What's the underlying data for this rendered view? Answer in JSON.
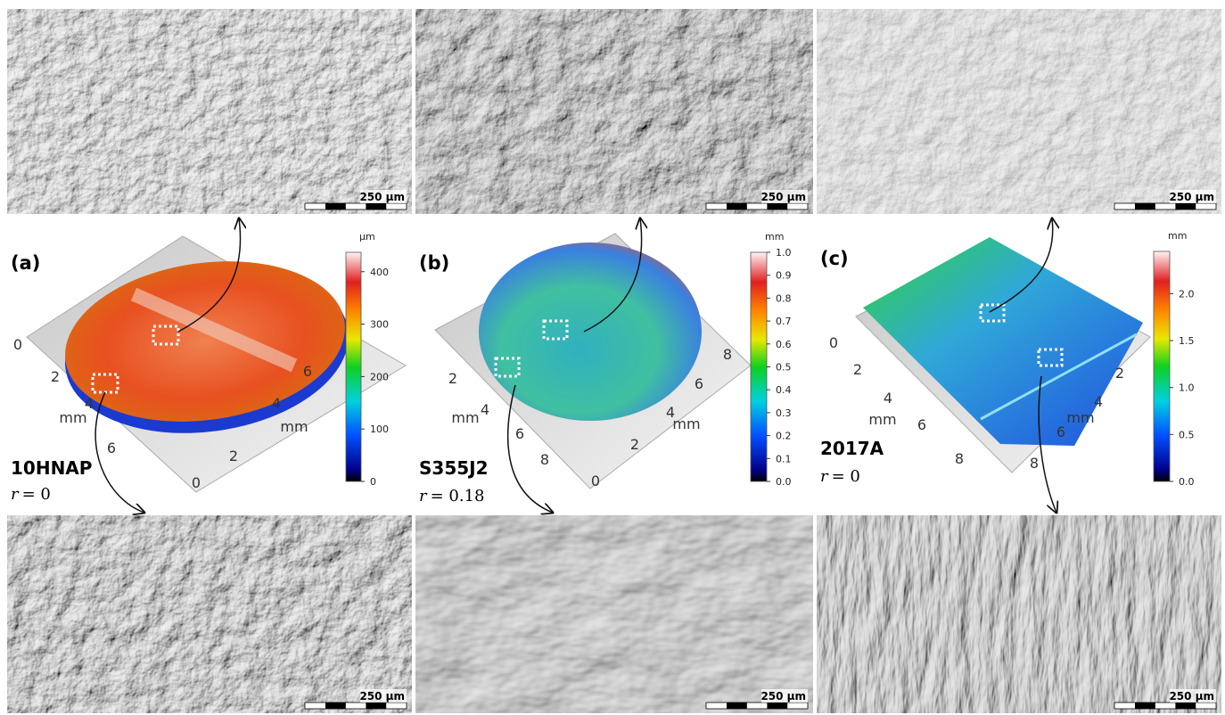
{
  "panels": [
    {
      "label": "(a)",
      "material": "10HNAP",
      "r_symbol": "r",
      "r_value": "= 0",
      "axis_unit": "mm",
      "axis1_ticks": [
        0,
        2,
        4,
        6
      ],
      "axis2_ticks": [
        0,
        2,
        4,
        6
      ],
      "colorbar": {
        "unit": "µm",
        "lim": [
          0,
          437
        ],
        "ticks": [
          0,
          100,
          200,
          300,
          400
        ]
      },
      "top_scale": "250 µm",
      "bottom_scale": "250 µm"
    },
    {
      "label": "(b)",
      "material": "S355J2",
      "r_symbol": "r",
      "r_value": "= 0.18",
      "axis_unit": "mm",
      "axis1_ticks": [
        2,
        4,
        6,
        8
      ],
      "axis2_ticks": [
        0,
        2,
        4,
        6,
        8
      ],
      "colorbar": {
        "unit": "mm",
        "lim": [
          0,
          1
        ],
        "ticks": [
          {
            "value": 0,
            "label": "0.0"
          },
          0.1,
          0.2,
          0.3,
          0.4,
          0.5,
          0.6,
          0.7,
          0.8,
          0.9,
          {
            "value": 1,
            "label": "1.0"
          }
        ]
      },
      "top_scale": "250 µm",
      "bottom_scale": "250 µm"
    },
    {
      "label": "(c)",
      "material": "2017A",
      "r_symbol": "r",
      "r_value": "= 0",
      "axis_unit": "mm",
      "axis1_ticks": [
        0,
        2,
        4,
        6,
        8
      ],
      "axis2_ticks": [
        8,
        6,
        4,
        2
      ],
      "colorbar": {
        "unit": "mm",
        "lim": [
          0,
          2.45
        ],
        "ticks": [
          {
            "value": 0,
            "label": "0.0"
          },
          0.5,
          {
            "value": 1,
            "label": "1.0"
          },
          1.5,
          {
            "value": 2,
            "label": "2.0"
          }
        ]
      },
      "top_scale": "250 µm",
      "bottom_scale": "250 µm"
    }
  ]
}
